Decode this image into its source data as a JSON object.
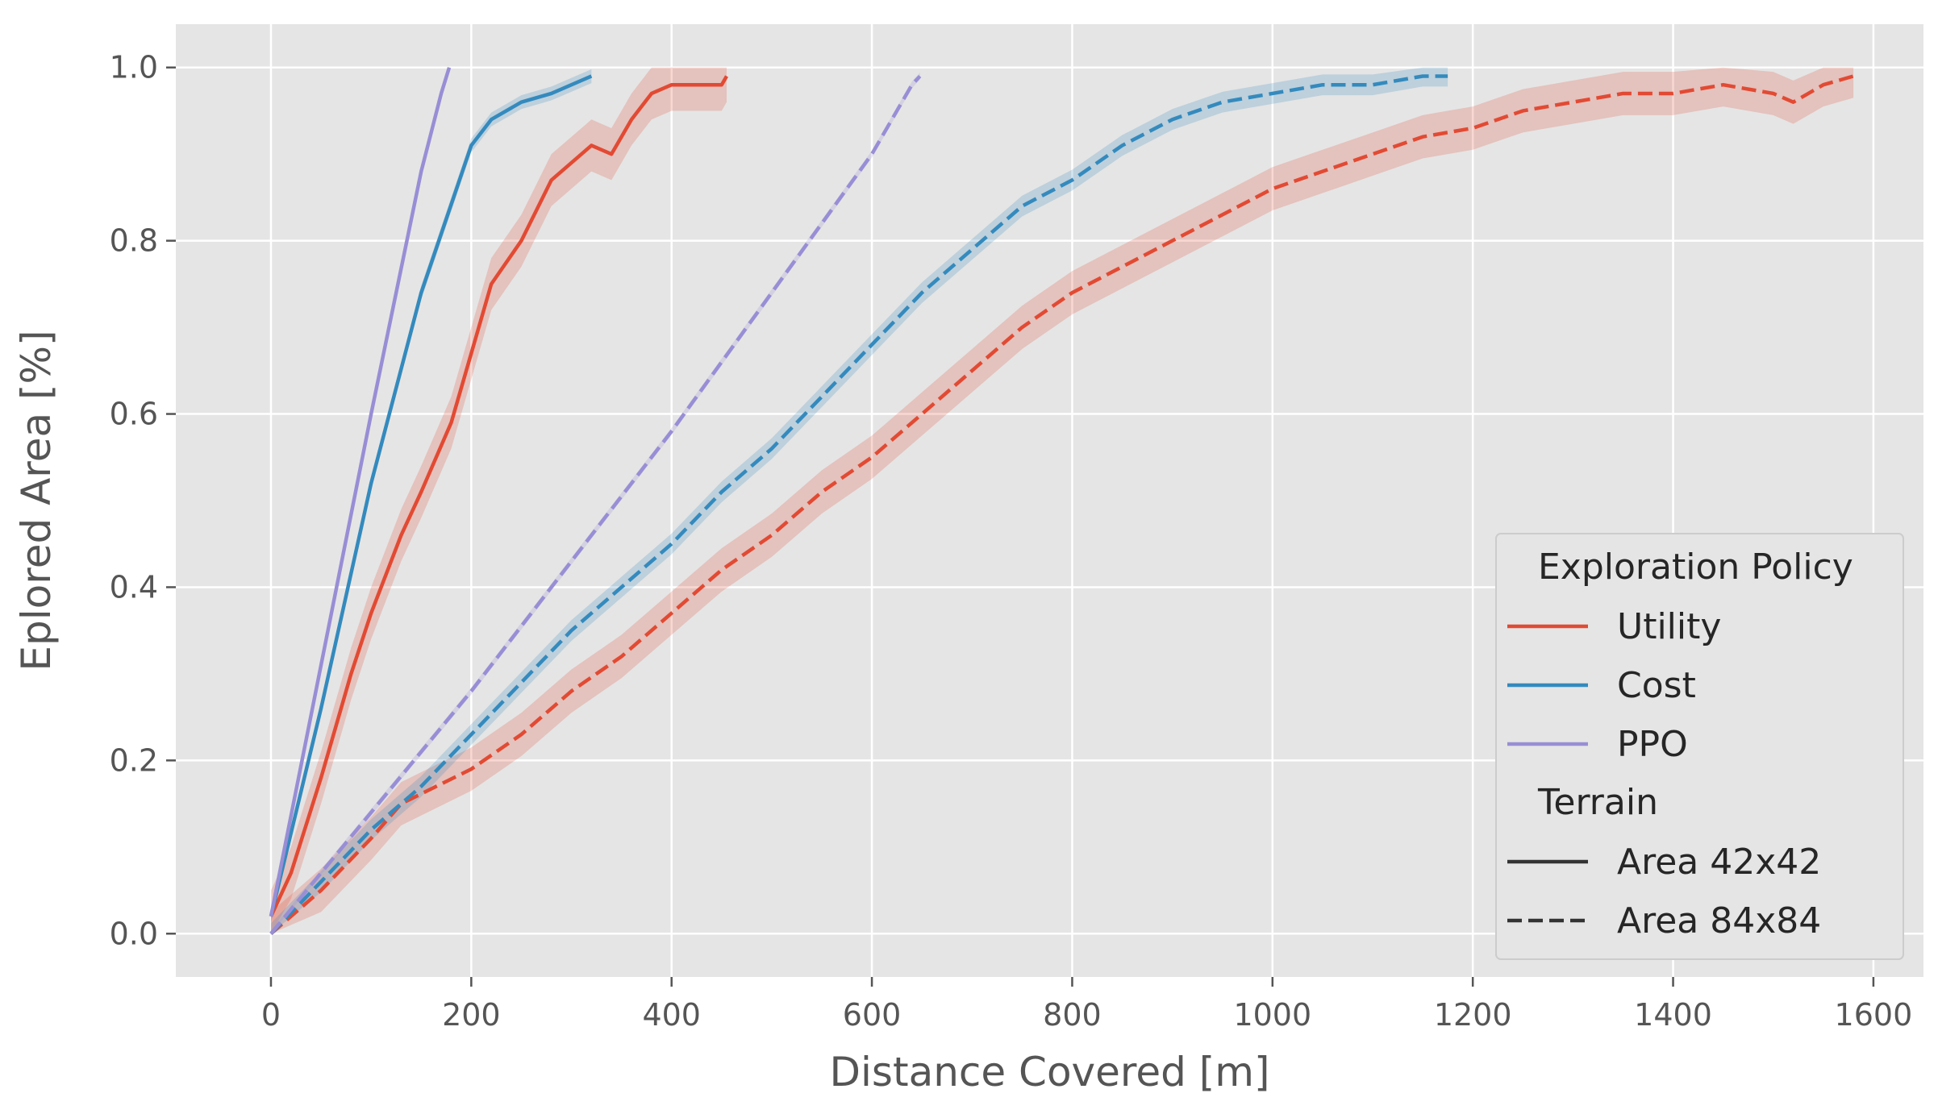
{
  "chart_data": {
    "type": "line",
    "title": "",
    "xlabel": "Distance Covered [m]",
    "ylabel": "Eplored Area [%]",
    "xlim": [
      -95,
      1650
    ],
    "ylim": [
      -0.05,
      1.05
    ],
    "xticks": [
      0,
      200,
      400,
      600,
      800,
      1000,
      1200,
      1400,
      1600
    ],
    "yticks": [
      0.0,
      0.2,
      0.4,
      0.6,
      0.8,
      1.0
    ],
    "xtick_labels": [
      "0",
      "200",
      "400",
      "600",
      "800",
      "1000",
      "1200",
      "1400",
      "1600"
    ],
    "ytick_labels": [
      "0.0",
      "0.2",
      "0.4",
      "0.6",
      "0.8",
      "1.0"
    ],
    "grid": true,
    "legend_position": "lower-right",
    "legend": {
      "hue_title": "Exploration Policy",
      "style_title": "Terrain",
      "hue_entries": [
        {
          "label": "Utility",
          "color": "#e24a33"
        },
        {
          "label": "Cost",
          "color": "#348abd"
        },
        {
          "label": "PPO",
          "color": "#988ed5"
        }
      ],
      "style_entries": [
        {
          "label": "Area 42x42",
          "dash": "solid"
        },
        {
          "label": "Area 84x84",
          "dash": "dashed"
        }
      ]
    },
    "series": [
      {
        "policy": "Utility",
        "terrain": "Area 42x42",
        "color": "#e24a33",
        "dash": "solid",
        "band": 0.03,
        "x": [
          0,
          20,
          50,
          80,
          100,
          130,
          150,
          180,
          200,
          220,
          250,
          280,
          300,
          320,
          340,
          360,
          380,
          400,
          420,
          440,
          450,
          455
        ],
        "y": [
          0.02,
          0.07,
          0.18,
          0.3,
          0.37,
          0.46,
          0.51,
          0.59,
          0.67,
          0.75,
          0.8,
          0.87,
          0.89,
          0.91,
          0.9,
          0.94,
          0.97,
          0.98,
          0.98,
          0.98,
          0.98,
          0.99
        ]
      },
      {
        "policy": "Cost",
        "terrain": "Area 42x42",
        "color": "#348abd",
        "dash": "solid",
        "band": 0.008,
        "x": [
          0,
          50,
          100,
          150,
          200,
          220,
          250,
          280,
          300,
          320
        ],
        "y": [
          0.02,
          0.26,
          0.52,
          0.74,
          0.91,
          0.94,
          0.96,
          0.97,
          0.98,
          0.99
        ]
      },
      {
        "policy": "PPO",
        "terrain": "Area 42x42",
        "color": "#988ed5",
        "dash": "solid",
        "band": 0.004,
        "x": [
          0,
          50,
          100,
          150,
          170,
          178
        ],
        "y": [
          0.02,
          0.31,
          0.6,
          0.88,
          0.97,
          1.0
        ]
      },
      {
        "policy": "Utility",
        "terrain": "Area 84x84",
        "color": "#e24a33",
        "dash": "dashed",
        "band": 0.025,
        "x": [
          0,
          50,
          100,
          130,
          200,
          250,
          300,
          350,
          400,
          450,
          500,
          550,
          600,
          650,
          700,
          750,
          800,
          850,
          900,
          950,
          1000,
          1050,
          1100,
          1150,
          1200,
          1250,
          1300,
          1350,
          1400,
          1450,
          1500,
          1520,
          1550,
          1580
        ],
        "y": [
          0.0,
          0.05,
          0.11,
          0.15,
          0.19,
          0.23,
          0.28,
          0.32,
          0.37,
          0.42,
          0.46,
          0.51,
          0.55,
          0.6,
          0.65,
          0.7,
          0.74,
          0.77,
          0.8,
          0.83,
          0.86,
          0.88,
          0.9,
          0.92,
          0.93,
          0.95,
          0.96,
          0.97,
          0.97,
          0.98,
          0.97,
          0.96,
          0.98,
          0.99
        ]
      },
      {
        "policy": "Cost",
        "terrain": "Area 84x84",
        "color": "#348abd",
        "dash": "dashed",
        "band": 0.012,
        "x": [
          0,
          50,
          100,
          150,
          200,
          250,
          300,
          350,
          400,
          450,
          500,
          550,
          600,
          650,
          700,
          750,
          800,
          850,
          900,
          950,
          1000,
          1050,
          1100,
          1150,
          1175
        ],
        "y": [
          0.0,
          0.06,
          0.12,
          0.17,
          0.23,
          0.29,
          0.35,
          0.4,
          0.45,
          0.51,
          0.56,
          0.62,
          0.68,
          0.74,
          0.79,
          0.84,
          0.87,
          0.91,
          0.94,
          0.96,
          0.97,
          0.98,
          0.98,
          0.99,
          0.99
        ]
      },
      {
        "policy": "PPO",
        "terrain": "Area 84x84",
        "color": "#988ed5",
        "dash": "dashed",
        "band": 0.004,
        "x": [
          0,
          100,
          200,
          300,
          400,
          500,
          600,
          640,
          648
        ],
        "y": [
          0.0,
          0.14,
          0.28,
          0.43,
          0.58,
          0.74,
          0.9,
          0.98,
          0.99
        ]
      }
    ]
  }
}
